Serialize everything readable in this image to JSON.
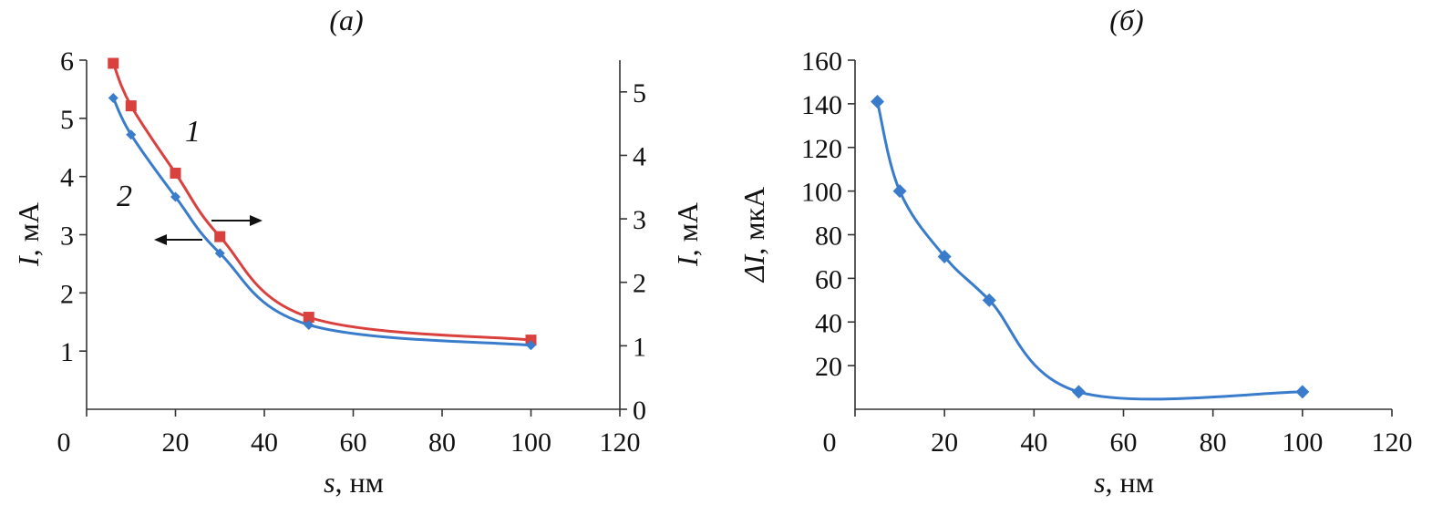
{
  "chart_data": [
    {
      "type": "line",
      "title": "(а)",
      "xlabel_var": "s",
      "xlabel_unit": ", нм",
      "ylabel_left_var": "I",
      "ylabel_left_unit": ", мА",
      "ylabel_right_var": "I",
      "ylabel_right_unit": ", мА",
      "xlim": [
        0,
        120
      ],
      "ylim_left": [
        0,
        6
      ],
      "ylim_right": [
        0,
        5.5
      ],
      "x_ticks": [
        "0",
        "20",
        "40",
        "60",
        "80",
        "100",
        "120"
      ],
      "y_left_ticks": [
        "1",
        "2",
        "3",
        "4",
        "5",
        "6"
      ],
      "y_right_ticks": [
        "0",
        "1",
        "2",
        "3",
        "4",
        "5"
      ],
      "series": [
        {
          "name": "1",
          "axis": "right",
          "marker": "square",
          "color": "#d9413e",
          "x": [
            6,
            10,
            20,
            30,
            50,
            100
          ],
          "y": [
            5.45,
            4.78,
            3.72,
            2.72,
            1.45,
            1.09
          ]
        },
        {
          "name": "2",
          "axis": "left",
          "marker": "diamond",
          "color": "#3a7ccc",
          "x": [
            6,
            10,
            20,
            30,
            50,
            100
          ],
          "y": [
            5.35,
            4.72,
            3.65,
            2.68,
            1.45,
            1.1
          ]
        }
      ]
    },
    {
      "type": "line",
      "title": "(б)",
      "xlabel_var": "s",
      "xlabel_unit": ", нм",
      "ylabel_var": "ΔI",
      "ylabel_unit": ", мкА",
      "xlim": [
        0,
        120
      ],
      "ylim": [
        0,
        160
      ],
      "x_ticks": [
        "0",
        "20",
        "40",
        "60",
        "80",
        "100",
        "120"
      ],
      "y_ticks": [
        "20",
        "40",
        "60",
        "80",
        "100",
        "120",
        "140",
        "160"
      ],
      "series": [
        {
          "marker": "diamond",
          "color": "#3a7ccc",
          "x": [
            5,
            10,
            20,
            30,
            50,
            100
          ],
          "y": [
            141,
            100,
            70,
            50,
            8,
            8
          ]
        }
      ]
    }
  ]
}
